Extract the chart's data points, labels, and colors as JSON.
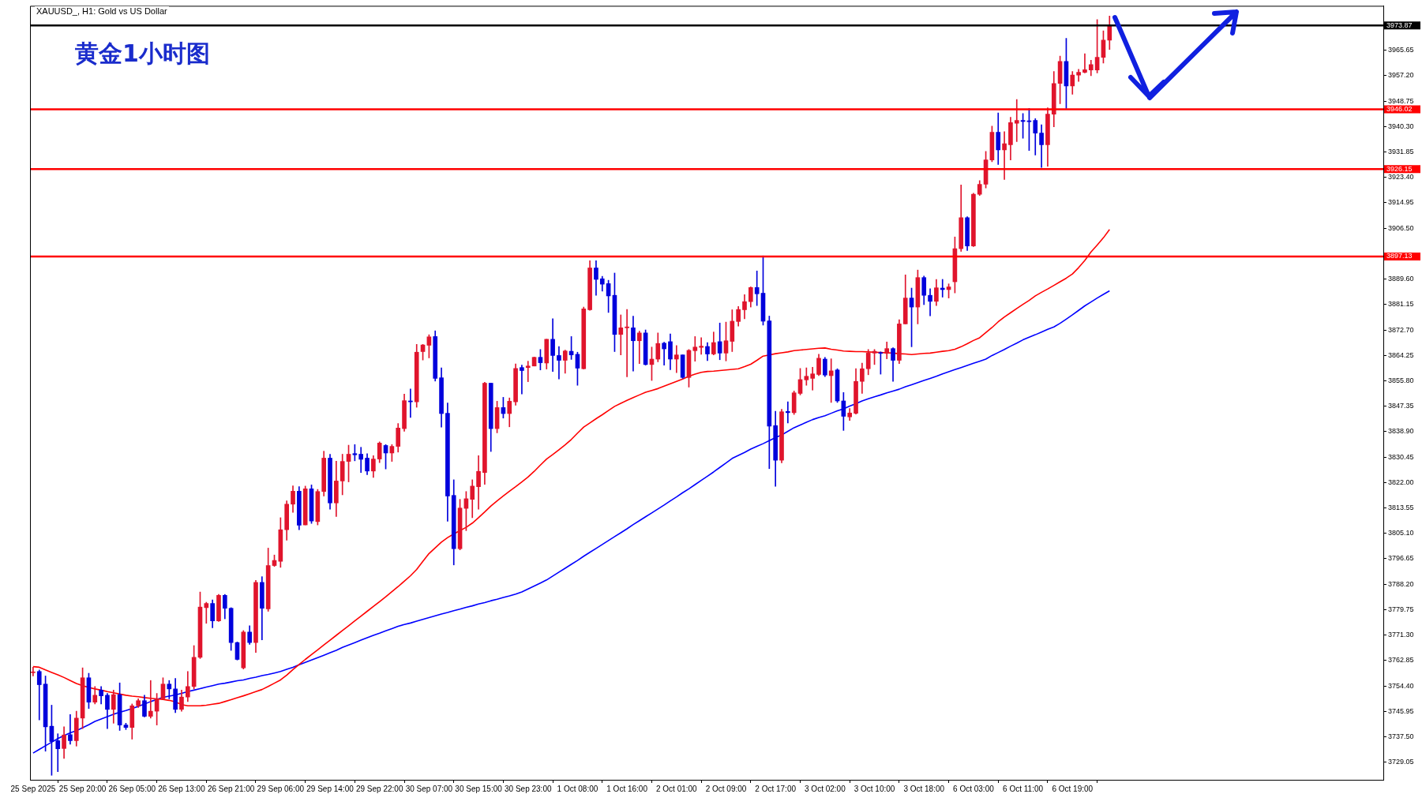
{
  "chart_data": {
    "type": "candlestick",
    "title": "XAUUSD_, H1: Gold vs US Dollar",
    "annotations": [
      "黄金1小时图"
    ],
    "categories": [
      "25 Sep 2025",
      null,
      null,
      null,
      null,
      null,
      null,
      null,
      "25 Sep 20:00",
      null,
      null,
      null,
      null,
      null,
      null,
      null,
      "26 Sep 05:00",
      null,
      null,
      null,
      null,
      null,
      null,
      null,
      "26 Sep 13:00",
      null,
      null,
      null,
      null,
      null,
      null,
      null,
      "26 Sep 21:00",
      null,
      null,
      null,
      null,
      null,
      null,
      null,
      "29 Sep 06:00",
      null,
      null,
      null,
      null,
      null,
      null,
      null,
      "29 Sep 14:00",
      null,
      null,
      null,
      null,
      null,
      null,
      null,
      "29 Sep 22:00",
      null,
      null,
      null,
      null,
      null,
      null,
      null,
      "30 Sep 07:00",
      null,
      null,
      null,
      null,
      null,
      null,
      null,
      "30 Sep 15:00",
      null,
      null,
      null,
      null,
      null,
      null,
      null,
      "30 Sep 23:00",
      null,
      null,
      null,
      null,
      null,
      null,
      null,
      "1 Oct 08:00",
      null,
      null,
      null,
      null,
      null,
      null,
      null,
      "1 Oct 16:00",
      null,
      null,
      null,
      null,
      null,
      null,
      null,
      "2 Oct 01:00",
      null,
      null,
      null,
      null,
      null,
      null,
      null,
      "2 Oct 09:00",
      null,
      null,
      null,
      null,
      null,
      null,
      null,
      "2 Oct 17:00",
      null,
      null,
      null,
      null,
      null,
      null,
      null,
      "3 Oct 02:00",
      null,
      null,
      null,
      null,
      null,
      null,
      null,
      "3 Oct 10:00",
      null,
      null,
      null,
      null,
      null,
      null,
      null,
      "3 Oct 18:00",
      null,
      null,
      null,
      null,
      null,
      null,
      null,
      "6 Oct 03:00",
      null,
      null,
      null,
      null,
      null,
      null,
      null,
      "6 Oct 11:00",
      null,
      null,
      null,
      null,
      null,
      null,
      null,
      "6 Oct 19:00",
      null,
      null,
      null,
      null,
      null,
      null
    ],
    "ohlc": [
      [
        3758.8,
        3760.6,
        3757.7,
        3758.9
      ],
      [
        3759.2,
        3759.7,
        3743.1,
        3754.8
      ],
      [
        3755.0,
        3757.7,
        3732.7,
        3740.8
      ],
      [
        3741.0,
        3748.0,
        3724.7,
        3735.9
      ],
      [
        3736.2,
        3738.5,
        3725.9,
        3733.5
      ],
      [
        3733.6,
        3740.8,
        3730.3,
        3738.1
      ],
      [
        3738.2,
        3744.9,
        3735.0,
        3736.2
      ],
      [
        3736.2,
        3746.0,
        3734.4,
        3743.7
      ],
      [
        3743.7,
        3760.4,
        3740.2,
        3757.1
      ],
      [
        3757.1,
        3758.6,
        3746.9,
        3749.0
      ],
      [
        3749.0,
        3754.2,
        3748.4,
        3751.3
      ],
      [
        3753.0,
        3754.2,
        3748.4,
        3751.1
      ],
      [
        3751.3,
        3751.9,
        3740.2,
        3746.6
      ],
      [
        3746.6,
        3753.0,
        3742.0,
        3751.5
      ],
      [
        3751.5,
        3755.4,
        3739.6,
        3741.4
      ],
      [
        3741.4,
        3742.0,
        3739.9,
        3740.6
      ],
      [
        3740.6,
        3748.4,
        3736.7,
        3747.8
      ],
      [
        3747.8,
        3750.1,
        3747.2,
        3749.5
      ],
      [
        3749.5,
        3751.3,
        3744.1,
        3744.3
      ],
      [
        3744.3,
        3756.2,
        3743.7,
        3746.0
      ],
      [
        3746.0,
        3751.9,
        3741.4,
        3750.1
      ],
      [
        3750.1,
        3757.1,
        3749.9,
        3755.0
      ],
      [
        3755.0,
        3756.2,
        3750.1,
        3753.4
      ],
      [
        3753.4,
        3756.9,
        3745.5,
        3746.6
      ],
      [
        3746.6,
        3753.0,
        3746.0,
        3750.7
      ],
      [
        3750.7,
        3759.2,
        3749.2,
        3754.2
      ],
      [
        3754.2,
        3767.8,
        3753.4,
        3763.9
      ],
      [
        3763.9,
        3785.6,
        3763.5,
        3780.6
      ],
      [
        3780.4,
        3782.2,
        3775.2,
        3781.8
      ],
      [
        3781.8,
        3783.0,
        3773.7,
        3776.0
      ],
      [
        3776.0,
        3784.8,
        3775.8,
        3784.5
      ],
      [
        3784.5,
        3784.8,
        3776.7,
        3780.2
      ],
      [
        3780.2,
        3780.4,
        3766.2,
        3768.8
      ],
      [
        3768.8,
        3769.0,
        3763.0,
        3763.2
      ],
      [
        3760.4,
        3772.8,
        3760.0,
        3772.3
      ],
      [
        3772.3,
        3774.4,
        3768.2,
        3768.8
      ],
      [
        3768.8,
        3789.5,
        3765.5,
        3788.8
      ],
      [
        3788.8,
        3790.7,
        3769.7,
        3780.2
      ],
      [
        3780.0,
        3800.2,
        3779.2,
        3794.4
      ],
      [
        3794.4,
        3797.9,
        3794.1,
        3796.1
      ],
      [
        3795.8,
        3810.3,
        3793.8,
        3806.3
      ],
      [
        3806.3,
        3815.9,
        3802.8,
        3814.8
      ],
      [
        3814.8,
        3820.9,
        3812.1,
        3819.1
      ],
      [
        3819.1,
        3820.6,
        3806.3,
        3807.8
      ],
      [
        3807.9,
        3820.8,
        3807.9,
        3819.9
      ],
      [
        3819.9,
        3821.2,
        3808.4,
        3809.2
      ],
      [
        3809.0,
        3819.7,
        3807.9,
        3819.0
      ],
      [
        3819.0,
        3832.4,
        3817.5,
        3830.1
      ],
      [
        3830.1,
        3831.4,
        3813.1,
        3815.2
      ],
      [
        3815.2,
        3829.1,
        3810.7,
        3822.5
      ],
      [
        3822.5,
        3831.4,
        3817.9,
        3829.0
      ],
      [
        3829.0,
        3834.4,
        3822.2,
        3831.4
      ],
      [
        3831.6,
        3834.6,
        3829.2,
        3831.2
      ],
      [
        3831.4,
        3833.7,
        3825.3,
        3829.7
      ],
      [
        3830.1,
        3831.6,
        3824.6,
        3825.8
      ],
      [
        3825.8,
        3830.9,
        3823.7,
        3829.8
      ],
      [
        3829.8,
        3835.5,
        3828.6,
        3835.1
      ],
      [
        3834.3,
        3834.6,
        3826.5,
        3831.8
      ],
      [
        3831.8,
        3834.6,
        3829.0,
        3834.0
      ],
      [
        3834.0,
        3841.6,
        3832.1,
        3840.1
      ],
      [
        3839.9,
        3851.4,
        3839.0,
        3849.2
      ],
      [
        3849.1,
        3853.1,
        3843.6,
        3848.8
      ],
      [
        3848.8,
        3867.9,
        3847.0,
        3865.3
      ],
      [
        3865.5,
        3867.9,
        3862.7,
        3867.7
      ],
      [
        3867.6,
        3871.1,
        3863.4,
        3870.4
      ],
      [
        3870.5,
        3872.4,
        3855.7,
        3856.6
      ],
      [
        3856.8,
        3860.1,
        3840.4,
        3844.9
      ],
      [
        3845.0,
        3848.4,
        3809.1,
        3817.5
      ],
      [
        3817.7,
        3822.9,
        3794.6,
        3800.0
      ],
      [
        3800.0,
        3816.4,
        3799.6,
        3813.5
      ],
      [
        3813.4,
        3819.0,
        3806.0,
        3816.6
      ],
      [
        3816.4,
        3822.9,
        3810.3,
        3820.8
      ],
      [
        3820.6,
        3830.9,
        3813.1,
        3825.7
      ],
      [
        3825.3,
        3855.3,
        3821.4,
        3855.0
      ],
      [
        3855.0,
        3855.0,
        3832.3,
        3839.9
      ],
      [
        3839.9,
        3849.0,
        3838.5,
        3846.9
      ],
      [
        3846.9,
        3850.3,
        3843.4,
        3844.9
      ],
      [
        3844.9,
        3850.1,
        3840.5,
        3849.0
      ],
      [
        3848.8,
        3861.4,
        3847.7,
        3859.9
      ],
      [
        3860.2,
        3861.0,
        3851.4,
        3859.2
      ],
      [
        3860.2,
        3862.3,
        3855.5,
        3860.7
      ],
      [
        3860.7,
        3863.7,
        3860.7,
        3863.6
      ],
      [
        3863.6,
        3866.2,
        3859.4,
        3861.8
      ],
      [
        3861.7,
        3869.6,
        3859.7,
        3869.6
      ],
      [
        3869.6,
        3876.4,
        3858.9,
        3864.2
      ],
      [
        3864.2,
        3867.2,
        3856.4,
        3862.6
      ],
      [
        3862.6,
        3866.0,
        3858.3,
        3865.7
      ],
      [
        3865.6,
        3870.5,
        3862.9,
        3864.4
      ],
      [
        3864.6,
        3865.3,
        3854.3,
        3860.0
      ],
      [
        3859.8,
        3880.3,
        3859.7,
        3879.7
      ],
      [
        3879.4,
        3895.7,
        3879.2,
        3893.3
      ],
      [
        3893.3,
        3895.7,
        3884.2,
        3889.5
      ],
      [
        3889.7,
        3890.5,
        3885.6,
        3887.9
      ],
      [
        3888.1,
        3889.2,
        3878.5,
        3884.0
      ],
      [
        3884.2,
        3891.6,
        3865.5,
        3871.2
      ],
      [
        3871.2,
        3877.7,
        3864.4,
        3873.4
      ],
      [
        3873.4,
        3879.5,
        3857.1,
        3873.7
      ],
      [
        3873.4,
        3877.3,
        3859.0,
        3869.1
      ],
      [
        3869.1,
        3872.3,
        3861.5,
        3871.7
      ],
      [
        3871.7,
        3872.7,
        3861.0,
        3861.2
      ],
      [
        3861.2,
        3867.0,
        3855.9,
        3863.0
      ],
      [
        3863.0,
        3871.7,
        3862.1,
        3868.2
      ],
      [
        3868.3,
        3868.6,
        3861.0,
        3866.4
      ],
      [
        3868.8,
        3871.4,
        3859.5,
        3863.0
      ],
      [
        3863.0,
        3867.5,
        3858.5,
        3864.4
      ],
      [
        3864.4,
        3864.4,
        3856.6,
        3856.9
      ],
      [
        3856.9,
        3866.2,
        3853.7,
        3865.9
      ],
      [
        3865.8,
        3870.5,
        3862.3,
        3867.0
      ],
      [
        3866.9,
        3870.1,
        3864.6,
        3867.3
      ],
      [
        3867.2,
        3868.5,
        3862.5,
        3864.7
      ],
      [
        3864.7,
        3872.0,
        3864.4,
        3868.5
      ],
      [
        3868.8,
        3875.0,
        3862.8,
        3865.0
      ],
      [
        3865.0,
        3875.3,
        3862.4,
        3869.1
      ],
      [
        3868.9,
        3879.4,
        3865.5,
        3875.6
      ],
      [
        3875.5,
        3880.5,
        3874.0,
        3879.5
      ],
      [
        3879.4,
        3884.4,
        3876.4,
        3882.1
      ],
      [
        3882.1,
        3887.0,
        3880.3,
        3886.8
      ],
      [
        3886.8,
        3892.3,
        3880.8,
        3884.7
      ],
      [
        3884.9,
        3897.3,
        3874.3,
        3875.6
      ],
      [
        3875.7,
        3877.3,
        3826.6,
        3840.7
      ],
      [
        3840.9,
        3845.7,
        3820.7,
        3829.4
      ],
      [
        3829.4,
        3846.3,
        3828.5,
        3845.5
      ],
      [
        3845.6,
        3848.8,
        3841.8,
        3845.2
      ],
      [
        3845.2,
        3852.4,
        3844.6,
        3851.8
      ],
      [
        3851.6,
        3859.9,
        3851.1,
        3856.2
      ],
      [
        3856.1,
        3860.1,
        3854.3,
        3857.3
      ],
      [
        3856.6,
        3860.3,
        3852.7,
        3858.1
      ],
      [
        3857.9,
        3864.6,
        3857.5,
        3863.3
      ],
      [
        3863.0,
        3863.6,
        3857.2,
        3857.7
      ],
      [
        3857.5,
        3863.1,
        3848.6,
        3859.1
      ],
      [
        3859.4,
        3859.8,
        3848.6,
        3849.1
      ],
      [
        3849.1,
        3851.9,
        3839.3,
        3844.0
      ],
      [
        3843.8,
        3846.6,
        3842.6,
        3845.1
      ],
      [
        3845.0,
        3859.8,
        3844.7,
        3855.6
      ],
      [
        3855.6,
        3861.7,
        3851.6,
        3859.8
      ],
      [
        3859.8,
        3866.2,
        3857.8,
        3865.0
      ],
      [
        3865.0,
        3866.2,
        3861.2,
        3865.6
      ],
      [
        3865.1,
        3865.4,
        3858.0,
        3864.9
      ],
      [
        3864.9,
        3868.7,
        3863.1,
        3866.5
      ],
      [
        3866.5,
        3866.8,
        3855.6,
        3862.6
      ],
      [
        3862.6,
        3876.1,
        3861.5,
        3874.7
      ],
      [
        3874.7,
        3891.0,
        3874.7,
        3883.3
      ],
      [
        3883.3,
        3886.6,
        3867.1,
        3880.3
      ],
      [
        3880.3,
        3892.6,
        3874.7,
        3890.1
      ],
      [
        3890.1,
        3890.6,
        3881.1,
        3884.2
      ],
      [
        3884.2,
        3886.4,
        3877.4,
        3882.2
      ],
      [
        3882.2,
        3889.5,
        3880.8,
        3886.7
      ],
      [
        3886.6,
        3889.5,
        3883.6,
        3886.1
      ],
      [
        3886.1,
        3888.0,
        3883.3,
        3887.0
      ],
      [
        3888.7,
        3903.6,
        3885.0,
        3899.7
      ],
      [
        3899.7,
        3920.9,
        3898.8,
        3910.0
      ],
      [
        3910.0,
        3910.3,
        3899.1,
        3900.6
      ],
      [
        3900.6,
        3918.1,
        3900.4,
        3917.8
      ],
      [
        3917.8,
        3922.3,
        3917.4,
        3921.1
      ],
      [
        3921.1,
        3932.0,
        3919.9,
        3929.2
      ],
      [
        3929.2,
        3940.4,
        3928.6,
        3938.4
      ],
      [
        3938.4,
        3944.8,
        3927.7,
        3932.5
      ],
      [
        3932.5,
        3938.6,
        3922.7,
        3934.6
      ],
      [
        3934.2,
        3943.4,
        3929.2,
        3941.6
      ],
      [
        3941.4,
        3949.3,
        3935.3,
        3942.3
      ],
      [
        3942.3,
        3944.6,
        3936.4,
        3942.0
      ],
      [
        3942.2,
        3946.3,
        3932.3,
        3941.9
      ],
      [
        3942.3,
        3942.9,
        3930.8,
        3938.1
      ],
      [
        3938.1,
        3940.9,
        3926.7,
        3934.2
      ],
      [
        3934.2,
        3946.5,
        3927.1,
        3944.4
      ],
      [
        3944.4,
        3958.6,
        3940.2,
        3954.6
      ],
      [
        3954.6,
        3963.7,
        3947.9,
        3961.9
      ],
      [
        3961.9,
        3969.6,
        3946.3,
        3953.8
      ],
      [
        3953.8,
        3958.6,
        3951.0,
        3957.4
      ],
      [
        3957.4,
        3959.3,
        3955.3,
        3958.3
      ],
      [
        3958.3,
        3964.5,
        3958.1,
        3959.2
      ],
      [
        3959.1,
        3962.3,
        3957.2,
        3960.9
      ],
      [
        3959.1,
        3975.8,
        3958.1,
        3963.3
      ],
      [
        3963.3,
        3972.1,
        3961.4,
        3969.0
      ],
      [
        3969.0,
        3977.0,
        3965.9,
        3973.87
      ]
    ],
    "colors": [
      "#e0142c",
      "#0000dc",
      "#0000dc",
      "#0000dc",
      "#0000dc",
      "#e0142c",
      "#0000dc",
      "#e0142c",
      "#e0142c",
      "#0000dc",
      "#e0142c",
      "#0000dc",
      "#0000dc",
      "#e0142c",
      "#0000dc",
      "#0000dc",
      "#e0142c",
      "#e0142c",
      "#0000dc",
      "#e0142c",
      "#e0142c",
      "#e0142c",
      "#0000dc",
      "#0000dc",
      "#e0142c",
      "#e0142c",
      "#e0142c",
      "#e0142c",
      "#e0142c",
      "#0000dc",
      "#e0142c",
      "#0000dc",
      "#0000dc",
      "#0000dc",
      "#e0142c",
      "#0000dc",
      "#e0142c",
      "#0000dc",
      "#e0142c",
      "#e0142c",
      "#e0142c",
      "#e0142c",
      "#e0142c",
      "#0000dc",
      "#e0142c",
      "#0000dc",
      "#e0142c",
      "#e0142c",
      "#0000dc",
      "#e0142c",
      "#e0142c",
      "#e0142c",
      "#0000dc",
      "#0000dc",
      "#0000dc",
      "#e0142c",
      "#e0142c",
      "#0000dc",
      "#e0142c",
      "#e0142c",
      "#e0142c",
      "#0000dc",
      "#e0142c",
      "#e0142c",
      "#e0142c",
      "#0000dc",
      "#0000dc",
      "#0000dc",
      "#0000dc",
      "#e0142c",
      "#e0142c",
      "#e0142c",
      "#e0142c",
      "#e0142c",
      "#0000dc",
      "#e0142c",
      "#0000dc",
      "#e0142c",
      "#e0142c",
      "#0000dc",
      "#e0142c",
      "#e0142c",
      "#0000dc",
      "#e0142c",
      "#0000dc",
      "#0000dc",
      "#e0142c",
      "#0000dc",
      "#0000dc",
      "#e0142c",
      "#e0142c",
      "#0000dc",
      "#0000dc",
      "#0000dc",
      "#0000dc",
      "#e0142c",
      "#e0142c",
      "#0000dc",
      "#e0142c",
      "#0000dc",
      "#e0142c",
      "#e0142c",
      "#0000dc",
      "#0000dc",
      "#e0142c",
      "#0000dc",
      "#e0142c",
      "#e0142c",
      "#e0142c",
      "#0000dc",
      "#e0142c",
      "#0000dc",
      "#e0142c",
      "#e0142c",
      "#e0142c",
      "#e0142c",
      "#e0142c",
      "#0000dc",
      "#0000dc",
      "#0000dc",
      "#0000dc",
      "#e0142c",
      "#0000dc",
      "#e0142c",
      "#e0142c",
      "#e0142c",
      "#e0142c",
      "#e0142c",
      "#0000dc",
      "#e0142c",
      "#0000dc",
      "#0000dc",
      "#e0142c",
      "#e0142c",
      "#e0142c",
      "#e0142c",
      "#e0142c",
      "#0000dc",
      "#e0142c",
      "#0000dc",
      "#e0142c",
      "#e0142c",
      "#0000dc",
      "#e0142c",
      "#0000dc",
      "#0000dc",
      "#e0142c",
      "#0000dc",
      "#e0142c",
      "#e0142c",
      "#e0142c",
      "#0000dc",
      "#e0142c",
      "#e0142c",
      "#e0142c",
      "#e0142c",
      "#0000dc",
      "#e0142c",
      "#e0142c",
      "#e0142c",
      "#0000dc",
      "#0000dc",
      "#0000dc",
      "#0000dc",
      "#e0142c",
      "#e0142c",
      "#e0142c",
      "#0000dc",
      "#e0142c",
      "#e0142c",
      "#e0142c",
      "#e0142c",
      "#e0142c",
      "#e0142c",
      "#e0142c"
    ],
    "series": [
      {
        "type": "line",
        "color": "#ff0000",
        "values": [
          3760.8,
          3760.6,
          3759.7,
          3758.9,
          3758.1,
          3757.2,
          3756.2,
          3755.2,
          3754.5,
          3753.9,
          3753.4,
          3753.0,
          3752.5,
          3752.1,
          3751.7,
          3751.3,
          3751.0,
          3750.8,
          3750.5,
          3750.3,
          3750.1,
          3749.9,
          3749.6,
          3749.1,
          3748.2,
          3747.8,
          3747.8,
          3747.8,
          3748.0,
          3748.3,
          3748.6,
          3749.2,
          3749.8,
          3750.5,
          3751.1,
          3751.8,
          3752.5,
          3753.2,
          3754.2,
          3755.3,
          3756.4,
          3758.0,
          3759.8,
          3761.5,
          3763.2,
          3764.8,
          3766.4,
          3768.0,
          3769.6,
          3771.2,
          3772.8,
          3774.4,
          3776.0,
          3777.6,
          3779.2,
          3780.8,
          3782.4,
          3784.0,
          3785.7,
          3787.4,
          3789.2,
          3791.0,
          3793.1,
          3795.8,
          3798.4,
          3800.3,
          3802.2,
          3803.7,
          3804.9,
          3806.0,
          3807.1,
          3808.5,
          3810.3,
          3812.2,
          3814.2,
          3815.9,
          3817.5,
          3819.1,
          3820.6,
          3822.2,
          3823.8,
          3825.7,
          3827.8,
          3829.8,
          3831.3,
          3832.9,
          3834.5,
          3836.3,
          3838.4,
          3840.4,
          3841.8,
          3843.2,
          3844.5,
          3845.9,
          3847.3,
          3848.3,
          3849.3,
          3850.2,
          3851.1,
          3852.0,
          3852.6,
          3853.2,
          3854.0,
          3854.8,
          3855.6,
          3856.4,
          3857.3,
          3858.0,
          3858.6,
          3858.9,
          3859.0,
          3859.2,
          3859.4,
          3859.6,
          3859.8,
          3860.5,
          3861.3,
          3862.6,
          3864.0,
          3864.4,
          3864.8,
          3865.1,
          3865.4,
          3865.8,
          3866.0,
          3866.2,
          3866.4,
          3866.6,
          3866.7,
          3866.3,
          3866.0,
          3865.7,
          3865.6,
          3865.5,
          3865.5,
          3865.4,
          3865.3,
          3865.2,
          3865.1,
          3865.0,
          3864.8,
          3864.7,
          3864.5,
          3864.7,
          3864.9,
          3865.0,
          3865.3,
          3865.6,
          3865.8,
          3866.3,
          3867.1,
          3868.1,
          3869.2,
          3870.1,
          3871.8,
          3873.5,
          3875.4,
          3877.0,
          3878.4,
          3879.8,
          3881.2,
          3882.5,
          3884.0,
          3885.2,
          3886.3,
          3887.5,
          3888.7,
          3889.9,
          3891.3,
          3893.4,
          3895.8,
          3898.6,
          3900.9,
          3903.3,
          3906.1
        ]
      },
      {
        "type": "line",
        "color": "#0000ff",
        "values": [
          3732.1,
          3733.3,
          3734.5,
          3735.7,
          3736.9,
          3737.9,
          3738.8,
          3739.5,
          3740.5,
          3741.5,
          3742.6,
          3743.4,
          3744.2,
          3745.0,
          3745.6,
          3746.2,
          3746.9,
          3747.6,
          3748.4,
          3749.2,
          3749.9,
          3750.6,
          3751.0,
          3751.4,
          3751.9,
          3752.5,
          3753.0,
          3753.5,
          3754.0,
          3754.5,
          3755.0,
          3755.3,
          3755.7,
          3756.1,
          3756.4,
          3756.9,
          3757.3,
          3757.8,
          3758.2,
          3758.7,
          3759.2,
          3759.9,
          3760.6,
          3761.4,
          3762.2,
          3763.0,
          3763.8,
          3764.6,
          3765.4,
          3766.2,
          3767.2,
          3768.0,
          3768.8,
          3769.6,
          3770.4,
          3771.2,
          3771.9,
          3772.7,
          3773.4,
          3774.2,
          3774.8,
          3775.3,
          3775.9,
          3776.5,
          3777.1,
          3777.7,
          3778.3,
          3778.8,
          3779.4,
          3779.9,
          3780.5,
          3781.0,
          3781.6,
          3782.1,
          3782.7,
          3783.2,
          3783.8,
          3784.3,
          3784.9,
          3785.6,
          3786.6,
          3787.6,
          3788.6,
          3789.6,
          3790.9,
          3792.2,
          3793.5,
          3794.8,
          3796.1,
          3797.5,
          3798.8,
          3800.1,
          3801.4,
          3802.7,
          3804.0,
          3805.3,
          3806.6,
          3808.0,
          3809.3,
          3810.6,
          3811.9,
          3813.2,
          3814.5,
          3815.9,
          3817.2,
          3818.6,
          3819.9,
          3821.3,
          3822.7,
          3824.1,
          3825.5,
          3827.0,
          3828.5,
          3830.0,
          3831.0,
          3832.0,
          3833.1,
          3834.0,
          3834.9,
          3835.9,
          3836.9,
          3837.8,
          3839.0,
          3840.2,
          3841.1,
          3842.0,
          3842.9,
          3843.6,
          3844.2,
          3845.0,
          3845.8,
          3846.5,
          3847.4,
          3848.2,
          3849.1,
          3849.8,
          3850.5,
          3851.1,
          3851.8,
          3852.4,
          3853.0,
          3853.8,
          3854.5,
          3855.2,
          3855.9,
          3856.6,
          3857.3,
          3858.1,
          3858.8,
          3859.5,
          3860.2,
          3860.9,
          3861.6,
          3862.3,
          3863.0,
          3864.2,
          3865.2,
          3866.2,
          3867.3,
          3868.3,
          3869.4,
          3870.3,
          3871.1,
          3872.0,
          3872.9,
          3873.7,
          3874.9,
          3876.3,
          3877.7,
          3879.2,
          3880.7,
          3882.0,
          3883.3,
          3884.5,
          3885.7
        ]
      }
    ],
    "ylim": [
      3723.2,
      3980.4
    ],
    "yticks": [
      3729.05,
      {
        "value": 3737.5,
        "label": "3737.50"
      },
      3745.95,
      {
        "value": 3754.4,
        "label": "3754.40"
      },
      3762.85,
      {
        "value": 3771.3,
        "label": "3771.30"
      },
      3779.75,
      {
        "value": 3788.2,
        "label": "3788.20"
      },
      3796.65,
      {
        "value": 3805.1,
        "label": "3805.10"
      },
      3813.55,
      {
        "value": 3822,
        "label": "3822.00"
      },
      3830.45,
      {
        "value": 3838.9,
        "label": "3838.90"
      },
      3847.35,
      {
        "value": 3855.8,
        "label": "3855.80"
      },
      3864.25,
      {
        "value": 3872.7,
        "label": "3872.70"
      },
      3881.15,
      {
        "value": 3889.6,
        "label": "3889.60"
      },
      {
        "value": 3898.05,
        "label": null
      },
      {
        "value": 3906.5,
        "label": "3906.50"
      },
      3914.95,
      {
        "value": 3923.4,
        "label": "3923.40"
      },
      3931.85,
      {
        "value": 3940.3,
        "label": "3940.30"
      },
      3948.75,
      {
        "value": 3957.2,
        "label": "3957.20"
      },
      3965.65
    ],
    "ref_lines": [
      {
        "axis": "y",
        "value": 3973.87,
        "label": "3973.87",
        "color": "#000000",
        "line_style": "solid"
      },
      {
        "axis": "y",
        "value": 3946.02,
        "label": "3946.02",
        "color": "#ff0000",
        "line_style": "solid"
      },
      {
        "axis": "y",
        "value": 3926.15,
        "label": "3926.15",
        "color": "#ff0000",
        "line_style": "solid"
      },
      {
        "axis": "y",
        "value": 3897.13,
        "label": "3897.13",
        "color": "#ff0000",
        "line_style": "solid"
      }
    ],
    "grid": false,
    "legend": false,
    "marker": "none",
    "line_style": "solid"
  }
}
